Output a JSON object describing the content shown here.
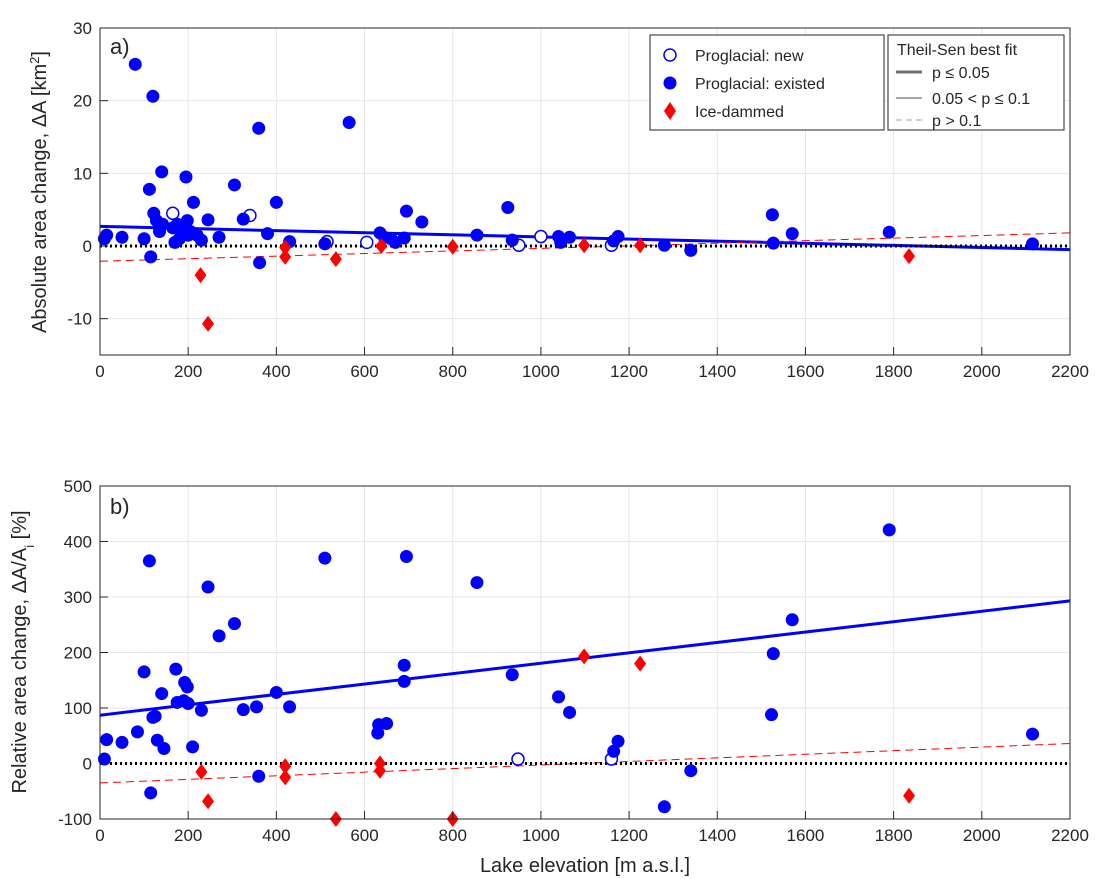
{
  "chart_data": [
    {
      "type": "scatter",
      "panel_label": "a)",
      "ylabel_main": "Absolute area change, ",
      "ylabel_delta": "ΔA [km",
      "ylabel_sup": "2",
      "ylabel_end": "]",
      "xlabel": "",
      "xlim": [
        0,
        2200
      ],
      "ylim": [
        -15,
        30
      ],
      "xticks": [
        "0",
        "200",
        "400",
        "600",
        "800",
        "1000",
        "1200",
        "1400",
        "1600",
        "1800",
        "2000",
        "2200"
      ],
      "yticks": [
        "-10",
        "0",
        "10",
        "20",
        "30"
      ],
      "grid": true,
      "series": [
        {
          "name": "Proglacial: new",
          "marker": "open-circle",
          "color": "#0000ff",
          "points": [
            [
              165,
              4.5
            ],
            [
              340,
              4.2
            ],
            [
              515,
              0.6
            ],
            [
              605,
              0.5
            ],
            [
              950,
              0.1
            ],
            [
              1000,
              1.3
            ],
            [
              1160,
              0.1
            ]
          ]
        },
        {
          "name": "Proglacial: existed",
          "marker": "filled-circle",
          "color": "#0000ff",
          "points": [
            [
              10,
              1.0
            ],
            [
              15,
              1.5
            ],
            [
              50,
              1.2
            ],
            [
              80,
              25
            ],
            [
              100,
              1.0
            ],
            [
              112,
              7.8
            ],
            [
              115,
              -1.5
            ],
            [
              120,
              20.6
            ],
            [
              122,
              4.5
            ],
            [
              128,
              3.5
            ],
            [
              135,
              2.0
            ],
            [
              140,
              10.2
            ],
            [
              142,
              3.0
            ],
            [
              165,
              2.5
            ],
            [
              170,
              0.5
            ],
            [
              175,
              3.0
            ],
            [
              180,
              1.0
            ],
            [
              185,
              1.5
            ],
            [
              190,
              2.5
            ],
            [
              195,
              9.5
            ],
            [
              198,
              3.5
            ],
            [
              200,
              1.5
            ],
            [
              205,
              2.0
            ],
            [
              212,
              6.0
            ],
            [
              220,
              1.5
            ],
            [
              230,
              0.8
            ],
            [
              245,
              3.6
            ],
            [
              270,
              1.2
            ],
            [
              305,
              8.4
            ],
            [
              325,
              3.7
            ],
            [
              360,
              16.2
            ],
            [
              362,
              -2.3
            ],
            [
              380,
              1.7
            ],
            [
              400,
              6.0
            ],
            [
              430,
              0.6
            ],
            [
              510,
              0.3
            ],
            [
              565,
              17
            ],
            [
              635,
              1.8
            ],
            [
              645,
              1.2
            ],
            [
              660,
              1.0
            ],
            [
              670,
              0.5
            ],
            [
              690,
              1.1
            ],
            [
              695,
              4.8
            ],
            [
              730,
              3.3
            ],
            [
              855,
              1.5
            ],
            [
              925,
              5.3
            ],
            [
              935,
              0.8
            ],
            [
              1040,
              1.3
            ],
            [
              1045,
              0.5
            ],
            [
              1065,
              1.2
            ],
            [
              1165,
              0.7
            ],
            [
              1175,
              1.3
            ],
            [
              1280,
              0.1
            ],
            [
              1340,
              -0.6
            ],
            [
              1525,
              4.3
            ],
            [
              1527,
              0.4
            ],
            [
              1570,
              1.7
            ],
            [
              1790,
              1.9
            ],
            [
              2115,
              0.3
            ]
          ]
        },
        {
          "name": "Ice-dammed",
          "marker": "diamond",
          "color": "#ff0000",
          "points": [
            [
              228,
              -4.0
            ],
            [
              245,
              -10.7
            ],
            [
              420,
              -0.2
            ],
            [
              420,
              -1.5
            ],
            [
              535,
              -1.8
            ],
            [
              638,
              0.0
            ],
            [
              800,
              -0.1
            ],
            [
              1098,
              0.1
            ],
            [
              1225,
              0.1
            ],
            [
              1835,
              -1.4
            ]
          ]
        }
      ],
      "fits": [
        {
          "group": "Proglacial: existed",
          "color": "#0000ff",
          "style": "p ≤ 0.05",
          "x": [
            0,
            2200
          ],
          "y": [
            2.7,
            -0.5
          ]
        },
        {
          "group": "Ice-dammed",
          "color": "#ff0000",
          "style": "p > 0.1",
          "x": [
            0,
            2200
          ],
          "y": [
            -2.1,
            1.8
          ]
        }
      ],
      "zero_line": true
    },
    {
      "type": "scatter",
      "panel_label": "b)",
      "ylabel_main": "Relative area change, ",
      "ylabel_delta": "ΔA/A",
      "ylabel_sub": "i",
      "ylabel_end": " [%]",
      "xlabel": "Lake elevation [m a.s.l.]",
      "xlim": [
        0,
        2200
      ],
      "ylim": [
        -100,
        500
      ],
      "xticks": [
        "0",
        "200",
        "400",
        "600",
        "800",
        "1000",
        "1200",
        "1400",
        "1600",
        "1800",
        "2000",
        "2200"
      ],
      "yticks": [
        "-100",
        "0",
        "100",
        "200",
        "300",
        "400",
        "500"
      ],
      "grid": true,
      "series": [
        {
          "name": "Proglacial: new",
          "marker": "open-circle",
          "color": "#0000ff",
          "points": [
            [
              948,
              8
            ],
            [
              1160,
              8
            ]
          ]
        },
        {
          "name": "Proglacial: existed",
          "marker": "filled-circle",
          "color": "#0000ff",
          "points": [
            [
              10,
              8
            ],
            [
              15,
              43
            ],
            [
              50,
              38
            ],
            [
              85,
              57
            ],
            [
              100,
              165
            ],
            [
              112,
              365
            ],
            [
              115,
              -53
            ],
            [
              120,
              83
            ],
            [
              125,
              85
            ],
            [
              130,
              42
            ],
            [
              140,
              126
            ],
            [
              145,
              27
            ],
            [
              172,
              170
            ],
            [
              175,
              110
            ],
            [
              190,
              113
            ],
            [
              192,
              146
            ],
            [
              198,
              138
            ],
            [
              200,
              108
            ],
            [
              210,
              30
            ],
            [
              230,
              96
            ],
            [
              245,
              318
            ],
            [
              270,
              230
            ],
            [
              305,
              252
            ],
            [
              325,
              97
            ],
            [
              355,
              102
            ],
            [
              360,
              -23
            ],
            [
              400,
              128
            ],
            [
              430,
              102
            ],
            [
              510,
              370
            ],
            [
              630,
              55
            ],
            [
              632,
              70
            ],
            [
              650,
              72
            ],
            [
              690,
              148
            ],
            [
              690,
              177
            ],
            [
              695,
              373
            ],
            [
              855,
              326
            ],
            [
              935,
              160
            ],
            [
              1040,
              120
            ],
            [
              1065,
              92
            ],
            [
              1165,
              22
            ],
            [
              1175,
              40
            ],
            [
              1280,
              -78
            ],
            [
              1340,
              -13
            ],
            [
              1523,
              88
            ],
            [
              1527,
              198
            ],
            [
              1570,
              259
            ],
            [
              1790,
              421
            ],
            [
              2115,
              53
            ]
          ]
        },
        {
          "name": "Ice-dammed",
          "marker": "diamond",
          "color": "#ff0000",
          "points": [
            [
              230,
              -15
            ],
            [
              245,
              -68
            ],
            [
              420,
              -5
            ],
            [
              420,
              -25
            ],
            [
              535,
              -100
            ],
            [
              635,
              0
            ],
            [
              635,
              -13
            ],
            [
              800,
              -100
            ],
            [
              1098,
              193
            ],
            [
              1225,
              180
            ],
            [
              1835,
              -58
            ]
          ]
        }
      ],
      "fits": [
        {
          "group": "Proglacial: existed",
          "color": "#0000ff",
          "style": "p ≤ 0.05",
          "x": [
            0,
            2200
          ],
          "y": [
            87,
            293
          ]
        },
        {
          "group": "Ice-dammed",
          "color": "#ff0000",
          "style": "p > 0.1",
          "x": [
            0,
            2200
          ],
          "y": [
            -35,
            36
          ]
        }
      ],
      "zero_line": true
    }
  ],
  "legend_markers": {
    "entries": [
      "Proglacial: new",
      "Proglacial: existed",
      "Ice-dammed"
    ],
    "position": "top-right"
  },
  "legend_fit": {
    "title": "Theil-Sen best fit",
    "entries": [
      "p ≤ 0.05",
      "0.05 < p ≤ 0.1",
      "p > 0.1"
    ]
  }
}
